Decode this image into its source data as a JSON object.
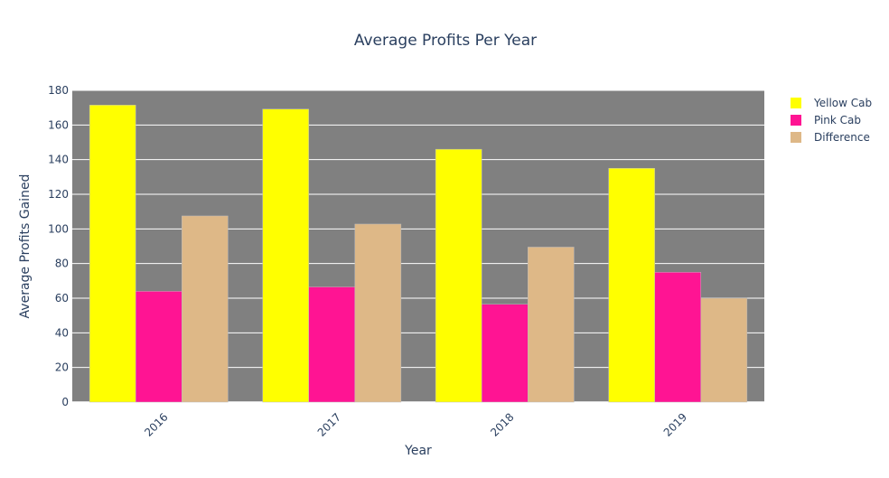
{
  "chart_data": {
    "type": "bar",
    "title": "Average Profits Per Year",
    "xlabel": "Year",
    "ylabel": "Average Profits Gained",
    "categories": [
      "2016",
      "2017",
      "2018",
      "2019"
    ],
    "series": [
      {
        "name": "Yellow Cab",
        "color": "#ffff00",
        "values": [
          171.5,
          169.2,
          146.0,
          135.0
        ]
      },
      {
        "name": "Pink Cab",
        "color": "#ff1493",
        "values": [
          64.0,
          66.5,
          56.5,
          75.0
        ]
      },
      {
        "name": "Difference",
        "color": "#deb887",
        "values": [
          107.5,
          102.8,
          89.5,
          60.0
        ]
      }
    ],
    "ylim": [
      0,
      180
    ],
    "yticks": [
      0,
      20,
      40,
      60,
      80,
      100,
      120,
      140,
      160,
      180
    ],
    "grid": true,
    "plot_background": "#808080",
    "grid_color": "#ffffff",
    "text_color": "#2a3f5f",
    "legend_position": "top-right"
  }
}
